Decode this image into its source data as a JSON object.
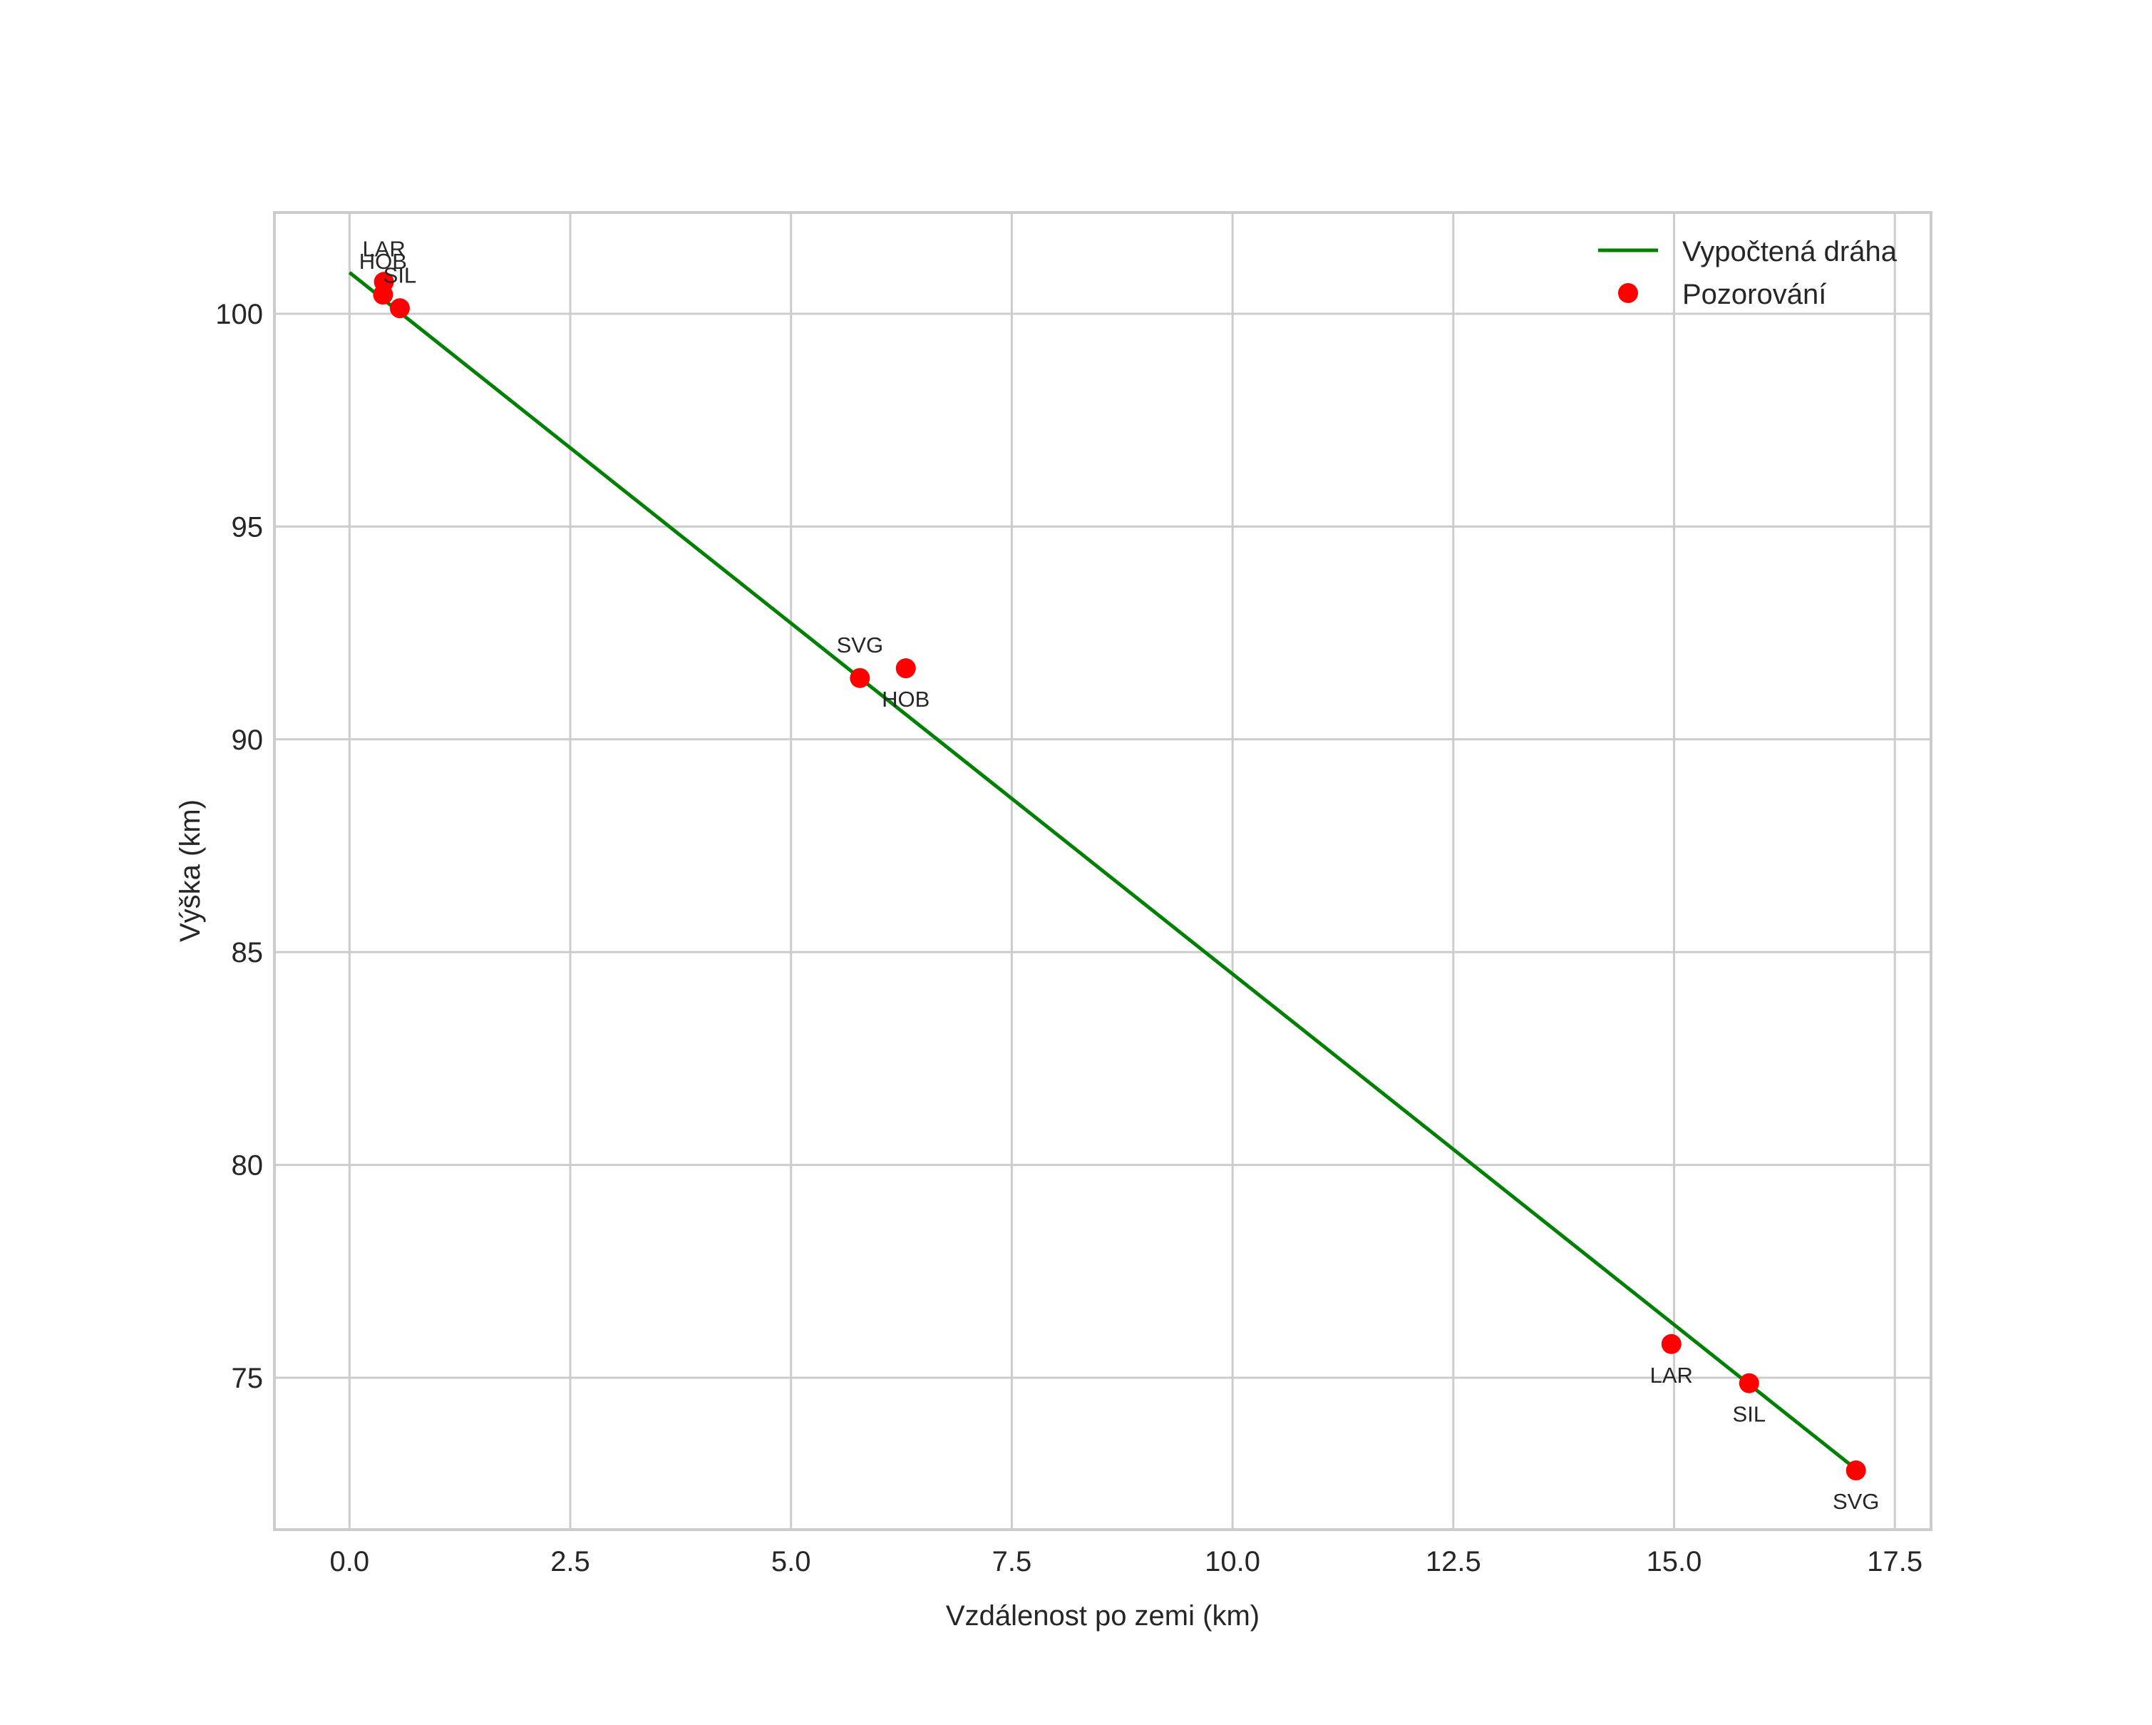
{
  "chart_data": {
    "type": "line",
    "title": "",
    "xlabel": "Vzdálenost po zemi (km)",
    "ylabel": "Výška (km)",
    "xlim": [
      -0.85,
      17.91
    ],
    "ylim": [
      71.43,
      102.38
    ],
    "grid": true,
    "legend_position": "upper right",
    "x_ticks": [
      0.0,
      2.5,
      5.0,
      7.5,
      10.0,
      12.5,
      15.0,
      17.5
    ],
    "x_tick_labels": [
      "0.0",
      "2.5",
      "5.0",
      "7.5",
      "10.0",
      "12.5",
      "15.0",
      "17.5"
    ],
    "y_ticks": [
      75,
      80,
      85,
      90,
      95,
      100
    ],
    "y_tick_labels": [
      "75",
      "80",
      "85",
      "90",
      "95",
      "100"
    ],
    "series": [
      {
        "name": "Vypočtená dráha",
        "type": "line",
        "color": "#008000",
        "x": [
          0.0,
          17.03
        ],
        "y": [
          100.97,
          72.9
        ]
      },
      {
        "name": "Pozorování",
        "type": "scatter",
        "color": "#ff0000",
        "points": [
          {
            "label": "LAR",
            "x": 0.39,
            "y": 100.75,
            "label_pos": "above"
          },
          {
            "label": "HOB",
            "x": 0.38,
            "y": 100.45,
            "label_pos": "above"
          },
          {
            "label": "SIL",
            "x": 0.57,
            "y": 100.13,
            "label_pos": "above"
          },
          {
            "label": "SVG",
            "x": 5.78,
            "y": 91.44,
            "label_pos": "above"
          },
          {
            "label": "HOB",
            "x": 6.3,
            "y": 91.67,
            "label_pos": "below"
          },
          {
            "label": "LAR",
            "x": 14.97,
            "y": 75.79,
            "label_pos": "below"
          },
          {
            "label": "SIL",
            "x": 15.85,
            "y": 74.87,
            "label_pos": "below"
          },
          {
            "label": "SVG",
            "x": 17.06,
            "y": 72.82,
            "label_pos": "below"
          }
        ]
      }
    ]
  },
  "legend": {
    "items": [
      {
        "label": "Vypočtená dráha",
        "kind": "line",
        "color": "#008000"
      },
      {
        "label": "Pozorování",
        "kind": "marker",
        "color": "#ff0000"
      }
    ]
  },
  "style": {
    "grid_color": "#cccccc",
    "text_color": "#262626",
    "background": "#ffffff"
  }
}
